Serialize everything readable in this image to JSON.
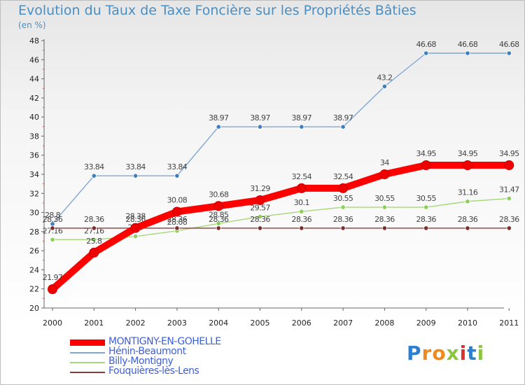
{
  "chart_data": {
    "type": "line",
    "title": "Evolution du Taux de Taxe Foncière sur les Propriétés Bâties",
    "unit_label": "(en %)",
    "categories": [
      "2000",
      "2001",
      "2002",
      "2003",
      "2004",
      "2005",
      "2006",
      "2007",
      "2008",
      "2009",
      "2010",
      "2011"
    ],
    "ylim": [
      20,
      48
    ],
    "yticks": [
      "20",
      "22",
      "24",
      "26",
      "28",
      "30",
      "32",
      "34",
      "36",
      "38",
      "40",
      "42",
      "44",
      "46",
      "48"
    ],
    "grid": false,
    "legend_position": "bottom-left",
    "series": [
      {
        "name": "Hénin-Beaumont",
        "color": "#7fa8d4",
        "marker": "#3f7fc0",
        "values": [
          28.8,
          33.84,
          33.84,
          33.84,
          38.97,
          38.97,
          38.97,
          38.97,
          43.2,
          46.68,
          46.68,
          46.68
        ],
        "labels": [
          "28.8",
          "33.84",
          "33.84",
          "33.84",
          "38.97",
          "38.97",
          "38.97",
          "38.97",
          "43.2",
          "46.68",
          "46.68",
          "46.68"
        ]
      },
      {
        "name": "Billy-Montigny",
        "color": "#a6d87a",
        "marker": "#8ccf55",
        "values": [
          27.16,
          27.16,
          27.5,
          28.08,
          28.85,
          29.57,
          30.1,
          30.55,
          30.55,
          30.55,
          31.16,
          31.47
        ],
        "labels": [
          "27.16",
          "27.16",
          "27.5",
          "28.08",
          "28.85",
          "29.57",
          "30.1",
          "30.55",
          "30.55",
          "30.55",
          "31.16",
          "31.47"
        ]
      },
      {
        "name": "Fouquières-lès-Lens",
        "color": "#8a3a3a",
        "marker": "#7a2e2e",
        "values": [
          28.36,
          28.36,
          28.36,
          28.36,
          28.36,
          28.36,
          28.36,
          28.36,
          28.36,
          28.36,
          28.36,
          28.36
        ],
        "labels": [
          "28.36",
          "28.36",
          "28.36",
          "28.36",
          "28.36",
          "28.36",
          "28.36",
          "28.36",
          "28.36",
          "28.36",
          "28.36",
          "28.36"
        ]
      },
      {
        "name": "MONTIGNY-EN-GOHELLE",
        "color": "#ff0000",
        "marker": "#ee0000",
        "emphasis": true,
        "values": [
          21.97,
          25.8,
          28.38,
          30.08,
          30.68,
          31.29,
          32.54,
          32.54,
          34,
          34.95,
          34.95,
          34.95
        ],
        "labels": [
          "21.97",
          "25.8",
          "28.38",
          "30.08",
          "30.68",
          "31.29",
          "32.54",
          "32.54",
          "34",
          "34.95",
          "34.95",
          "34.95"
        ]
      }
    ],
    "legend": [
      {
        "name": "MONTIGNY-EN-GOHELLE",
        "color": "#ff0000",
        "thick": true
      },
      {
        "name": "Hénin-Beaumont",
        "color": "#7fa8d4",
        "thick": false
      },
      {
        "name": "Billy-Montigny",
        "color": "#a6d87a",
        "thick": false
      },
      {
        "name": "Fouquières-lès-Lens",
        "color": "#8a3a3a",
        "thick": false
      }
    ]
  },
  "logo": {
    "letters": [
      {
        "ch": "P",
        "color": "#2e7fd0"
      },
      {
        "ch": "r",
        "color": "#f08a1c"
      },
      {
        "ch": "o",
        "color": "#f08a1c"
      },
      {
        "ch": "x",
        "color": "#8cc63f"
      },
      {
        "ch": "i",
        "color": "#e03030"
      },
      {
        "ch": "t",
        "color": "#2e7fd0"
      },
      {
        "ch": "i",
        "color": "#8cc63f"
      }
    ]
  }
}
